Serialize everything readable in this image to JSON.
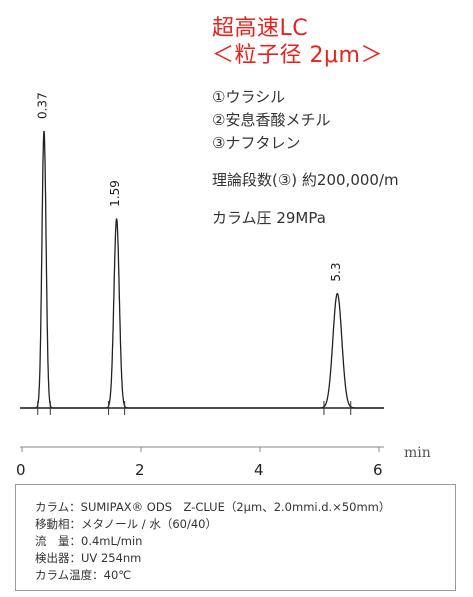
{
  "title": {
    "line1": "超高速LC",
    "line2": "＜粒子径 2μm＞"
  },
  "compounds": [
    "①ウラシル",
    "②安息香酸メチル",
    "③ナフタレン"
  ],
  "plates": "理論段数(③) 約200,000/m",
  "pressure": "カラム圧 29MPa",
  "conditions": [
    "カラム：SUMIPAX® ODS　Z-CLUE（2μm、2.0mmi.d.×50mm）",
    "移動相：メタノール / 水（60/40）",
    "流　量：0.4mL/min",
    "検出器：UV 254nm",
    "カラム温度：40℃"
  ],
  "colors": {
    "title": "#e8231f",
    "trace": "#222222"
  },
  "chart_data": {
    "type": "line",
    "title": "",
    "xlabel": "min",
    "ylabel": "",
    "xlim": [
      0,
      6
    ],
    "x_ticks": [
      "0",
      "2",
      "4",
      "6"
    ],
    "grid": false,
    "peaks": [
      {
        "label": "0.37",
        "retention_time": 0.37,
        "relative_height": 1.0
      },
      {
        "label": "1.59",
        "retention_time": 1.59,
        "relative_height": 0.683
      },
      {
        "label": "5.3",
        "retention_time": 5.3,
        "relative_height": 0.413
      }
    ]
  }
}
